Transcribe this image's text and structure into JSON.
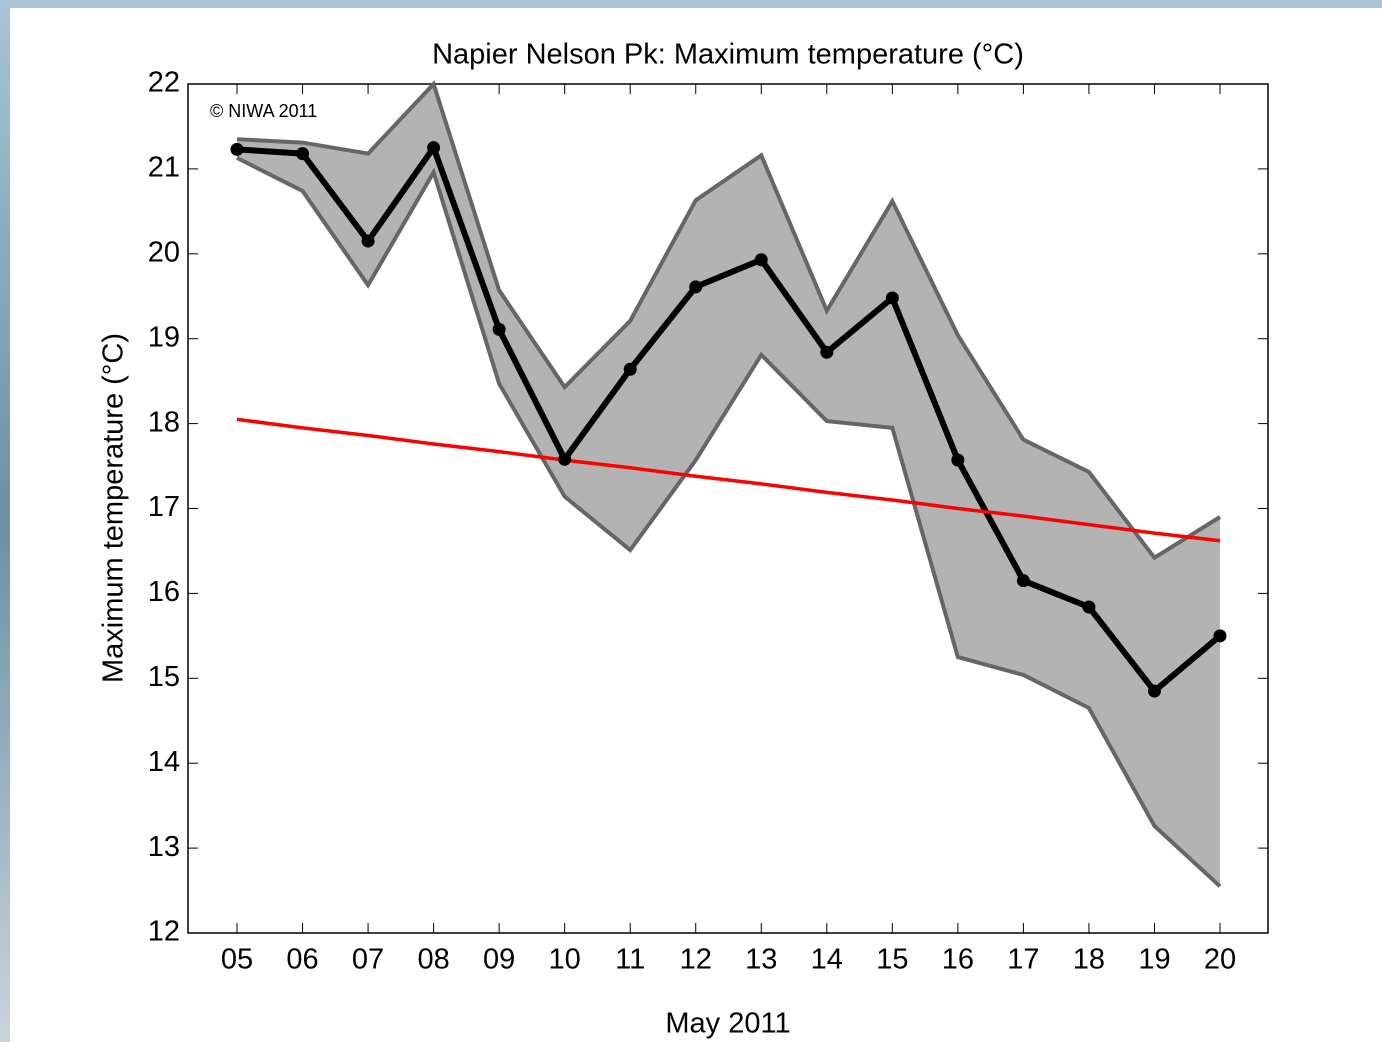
{
  "chart_data": {
    "type": "line",
    "title": "Napier Nelson Pk:  Maximum temperature (°C)",
    "x_label": "May 2011",
    "y_label": "Maximum temperature (°C)",
    "annotation": "© NIWA 2011",
    "categories": [
      "05",
      "06",
      "07",
      "08",
      "09",
      "10",
      "11",
      "12",
      "13",
      "14",
      "15",
      "16",
      "17",
      "18",
      "19",
      "20"
    ],
    "band": {
      "color": "#b3b3b3",
      "edge_color": "#666666",
      "upper": [
        21.35,
        21.31,
        21.18,
        22.0,
        19.57,
        18.43,
        19.21,
        20.63,
        21.16,
        19.33,
        20.62,
        19.04,
        17.81,
        17.43,
        16.42,
        16.9
      ],
      "lower": [
        21.13,
        20.74,
        19.63,
        20.96,
        18.47,
        17.14,
        16.51,
        17.57,
        18.81,
        18.03,
        17.95,
        15.25,
        15.04,
        14.65,
        13.26,
        12.55
      ]
    },
    "series": [
      {
        "color": "#000000",
        "markers": true,
        "values": [
          21.23,
          21.18,
          20.15,
          21.25,
          19.11,
          17.58,
          18.64,
          19.61,
          19.93,
          18.84,
          19.48,
          17.57,
          16.15,
          15.84,
          14.85,
          15.5
        ]
      },
      {
        "color": "#ff0000",
        "markers": false,
        "values": [
          18.05,
          17.95,
          17.86,
          17.76,
          17.67,
          17.57,
          17.48,
          17.38,
          17.29,
          17.19,
          17.1,
          17.0,
          16.91,
          16.81,
          16.71,
          16.62
        ]
      }
    ],
    "ylim": [
      12,
      22
    ],
    "yticks": [
      12,
      13,
      14,
      15,
      16,
      17,
      18,
      19,
      20,
      21,
      22
    ],
    "grid": false
  }
}
